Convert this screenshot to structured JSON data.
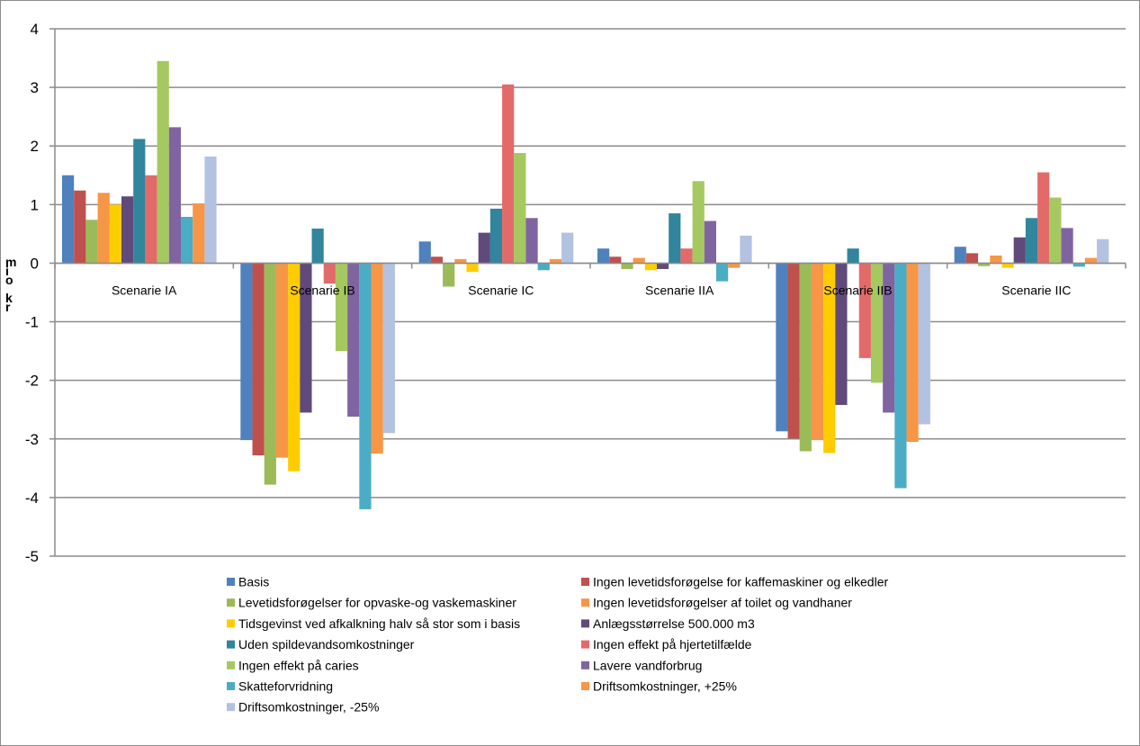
{
  "chart_data": {
    "type": "bar",
    "categories": [
      "Scenarie IA",
      "Scenarie IB",
      "Scenarie IC",
      "Scenarie IIA",
      "Scenarie IIB",
      "Scenarie IIC"
    ],
    "ylabel": "mio kr",
    "ylim": [
      -5,
      4
    ],
    "yticks": [
      4,
      3,
      2,
      1,
      0,
      -1,
      -2,
      -3,
      -4,
      -5
    ],
    "grid": true,
    "legend_position": "bottom",
    "series": [
      {
        "name": "Basis",
        "color": "#4F81BD",
        "values": [
          1.5,
          -3.02,
          0.37,
          0.25,
          -2.87,
          0.28
        ]
      },
      {
        "name": "Ingen levetidsforøgelse for kaffemaskiner og elkedler",
        "color": "#C0504D",
        "values": [
          1.24,
          -3.28,
          0.11,
          0.11,
          -2.99,
          0.17
        ]
      },
      {
        "name": "Levetidsforøgelser for opvaske-og vaskemaskiner",
        "color": "#9BBB59",
        "values": [
          0.74,
          -3.78,
          -0.4,
          -0.1,
          -3.21,
          -0.05
        ]
      },
      {
        "name": "Ingen levetidsforøgelser af toilet og vandhaner",
        "color": "#F79646",
        "values": [
          1.2,
          -3.32,
          0.07,
          0.09,
          -3.02,
          0.13
        ]
      },
      {
        "name": "Tidsgevinst ved afkalkning halv så stor som i basis",
        "color": "#FFCC00",
        "values": [
          1.0,
          -3.55,
          -0.15,
          -0.12,
          -3.24,
          -0.08
        ]
      },
      {
        "name": "Anlægsstørrelse 500.000 m3",
        "color": "#604A7B",
        "values": [
          1.14,
          -2.55,
          0.52,
          -0.1,
          -2.42,
          0.44
        ]
      },
      {
        "name": "Uden spildevandsomkostninger",
        "color": "#31859C",
        "values": [
          2.12,
          0.59,
          0.93,
          0.85,
          0.25,
          0.77
        ]
      },
      {
        "name": "Ingen effekt på hjertetilfælde",
        "color": "#E26B6A",
        "values": [
          1.5,
          -0.35,
          3.05,
          0.25,
          -1.62,
          1.55
        ]
      },
      {
        "name": "Ingen effekt på caries",
        "color": "#A5C960",
        "values": [
          3.45,
          -1.5,
          1.88,
          1.4,
          -2.04,
          1.12
        ]
      },
      {
        "name": "Lavere vandforbrug",
        "color": "#8064A2",
        "values": [
          2.32,
          -2.62,
          0.77,
          0.72,
          -2.55,
          0.6
        ]
      },
      {
        "name": "Skatteforvridning",
        "color": "#4BACC6",
        "values": [
          0.79,
          -4.2,
          -0.12,
          -0.31,
          -3.84,
          -0.06
        ]
      },
      {
        "name": "Driftsomkostninger, +25%",
        "color": "#F79646",
        "values": [
          1.02,
          -3.25,
          0.07,
          -0.08,
          -3.05,
          0.09
        ]
      },
      {
        "name": "Driftsomkostninger, -25%",
        "color": "#B3C2E0",
        "values": [
          1.82,
          -2.9,
          0.52,
          0.47,
          -2.75,
          0.41
        ]
      }
    ]
  }
}
